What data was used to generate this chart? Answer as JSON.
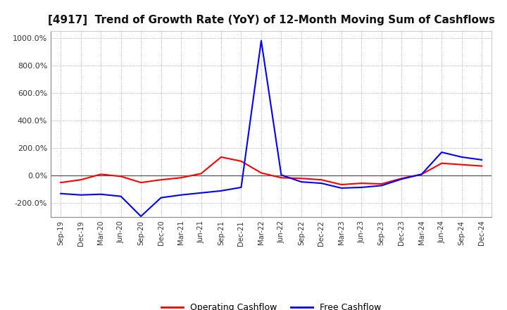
{
  "title": "[4917]  Trend of Growth Rate (YoY) of 12-Month Moving Sum of Cashflows",
  "x_labels": [
    "Sep-19",
    "Dec-19",
    "Mar-20",
    "Jun-20",
    "Sep-20",
    "Dec-20",
    "Mar-21",
    "Jun-21",
    "Sep-21",
    "Dec-21",
    "Mar-22",
    "Jun-22",
    "Sep-22",
    "Dec-22",
    "Mar-23",
    "Jun-23",
    "Sep-23",
    "Dec-23",
    "Mar-24",
    "Jun-24",
    "Sep-24",
    "Dec-24"
  ],
  "ylim": [
    -300,
    1050
  ],
  "yticks": [
    -200,
    0,
    200,
    400,
    600,
    800,
    1000
  ],
  "operating_cashflow": [
    -50,
    -30,
    10,
    -5,
    -50,
    -30,
    -15,
    15,
    135,
    105,
    20,
    -15,
    -20,
    -30,
    -65,
    -55,
    -60,
    -20,
    10,
    90,
    80,
    70
  ],
  "free_cashflow": [
    -130,
    -140,
    -135,
    -150,
    -295,
    -160,
    -140,
    -125,
    -110,
    -85,
    980,
    5,
    -45,
    -55,
    -90,
    -85,
    -72,
    -25,
    10,
    170,
    135,
    115
  ],
  "operating_color": "#ff0000",
  "free_color": "#0000ff",
  "legend_labels": [
    "Operating Cashflow",
    "Free Cashflow"
  ],
  "background_color": "#ffffff",
  "grid_color": "#999999",
  "zero_line_color": "#555555",
  "title_fontsize": 11,
  "figsize": [
    7.2,
    4.4
  ],
  "dpi": 100
}
